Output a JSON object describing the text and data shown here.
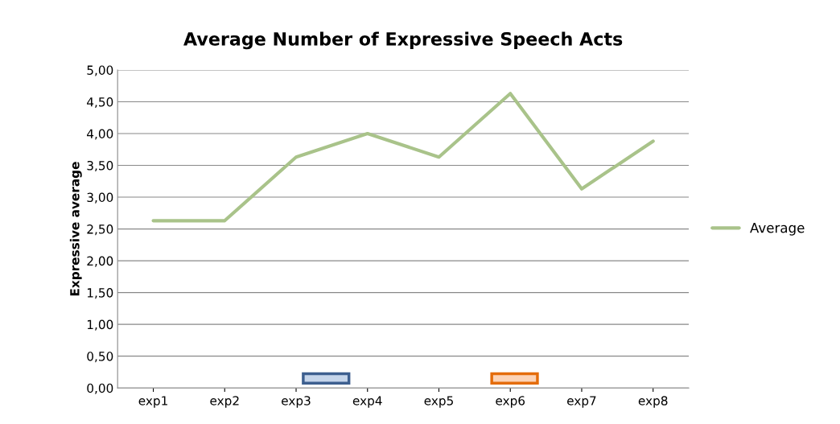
{
  "chart_data": {
    "type": "line",
    "title": "Average Number of Expressive Speech Acts",
    "ylabel": "Expressive average",
    "categories": [
      "exp1",
      "exp2",
      "exp3",
      "exp4",
      "exp5",
      "exp6",
      "exp7",
      "exp8"
    ],
    "series": [
      {
        "name": "Average",
        "color": "#a9c38a",
        "values": [
          2.63,
          2.63,
          3.63,
          4.0,
          3.63,
          4.63,
          3.13,
          3.88
        ]
      }
    ],
    "ylim": [
      0,
      5
    ],
    "yticks": [
      {
        "value": 0,
        "label": "0,00"
      },
      {
        "value": 0.5,
        "label": "0,50"
      },
      {
        "value": 1,
        "label": "1,00"
      },
      {
        "value": 1.5,
        "label": "1,50"
      },
      {
        "value": 2,
        "label": "2,00"
      },
      {
        "value": 2.5,
        "label": "2,50"
      },
      {
        "value": 3,
        "label": "3,00"
      },
      {
        "value": 3.5,
        "label": "3,50"
      },
      {
        "value": 4,
        "label": "4,00"
      },
      {
        "value": 4.5,
        "label": "4,50"
      },
      {
        "value": 5,
        "label": "5,00"
      }
    ],
    "grid": "y",
    "legend": "right",
    "marker": "none",
    "line_style": "solid"
  }
}
